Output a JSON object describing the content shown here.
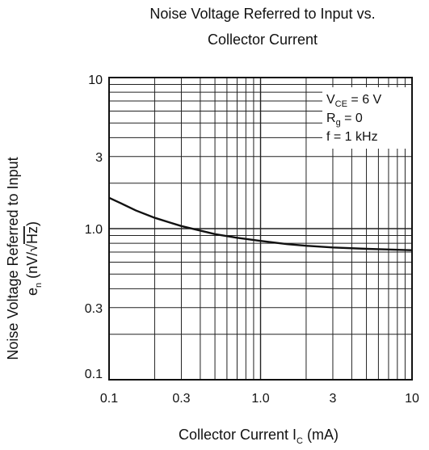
{
  "chart_data": {
    "type": "line",
    "title_line1": "Noise Voltage Referred to Input vs.",
    "title_line2": "Collector Current",
    "xlabel": {
      "main": "Collector Current  I",
      "sub": "C",
      "unit": "  (mA)"
    },
    "ylabel": {
      "line1": "Noise Voltage Referred to Input",
      "sym": "e",
      "sym_sub": "n",
      "unit_pre": "  (nV/",
      "unit_rad": "Hz",
      "unit_post": ")"
    },
    "x_scale": "log",
    "y_scale": "log",
    "xlim": [
      0.1,
      10
    ],
    "ylim": [
      0.1,
      10
    ],
    "x_ticks": [
      {
        "value": 0.1,
        "label": "0.1"
      },
      {
        "value": 0.3,
        "label": "0.3"
      },
      {
        "value": 1,
        "label": "1.0"
      },
      {
        "value": 3,
        "label": "3"
      },
      {
        "value": 10,
        "label": "10"
      }
    ],
    "y_ticks": [
      {
        "value": 0.1,
        "label": "0.1"
      },
      {
        "value": 0.3,
        "label": "0.3"
      },
      {
        "value": 1,
        "label": "1.0"
      },
      {
        "value": 3,
        "label": "3"
      },
      {
        "value": 10,
        "label": "10"
      }
    ],
    "grid": true,
    "conditions": [
      {
        "pre": "V",
        "sub": "CE",
        "post": " = 6 V"
      },
      {
        "pre": "R",
        "sub": "g",
        "post": " = 0"
      },
      {
        "pre": "f = 1 kHz",
        "sub": "",
        "post": ""
      }
    ],
    "series": [
      {
        "x": [
          0.1,
          0.12,
          0.15,
          0.2,
          0.25,
          0.3,
          0.4,
          0.5,
          0.7,
          1.0,
          1.5,
          2,
          3,
          5,
          7,
          10
        ],
        "y": [
          1.6,
          1.47,
          1.32,
          1.18,
          1.1,
          1.04,
          0.97,
          0.92,
          0.87,
          0.83,
          0.79,
          0.77,
          0.75,
          0.735,
          0.728,
          0.72
        ]
      }
    ],
    "line_color": "#111111"
  }
}
